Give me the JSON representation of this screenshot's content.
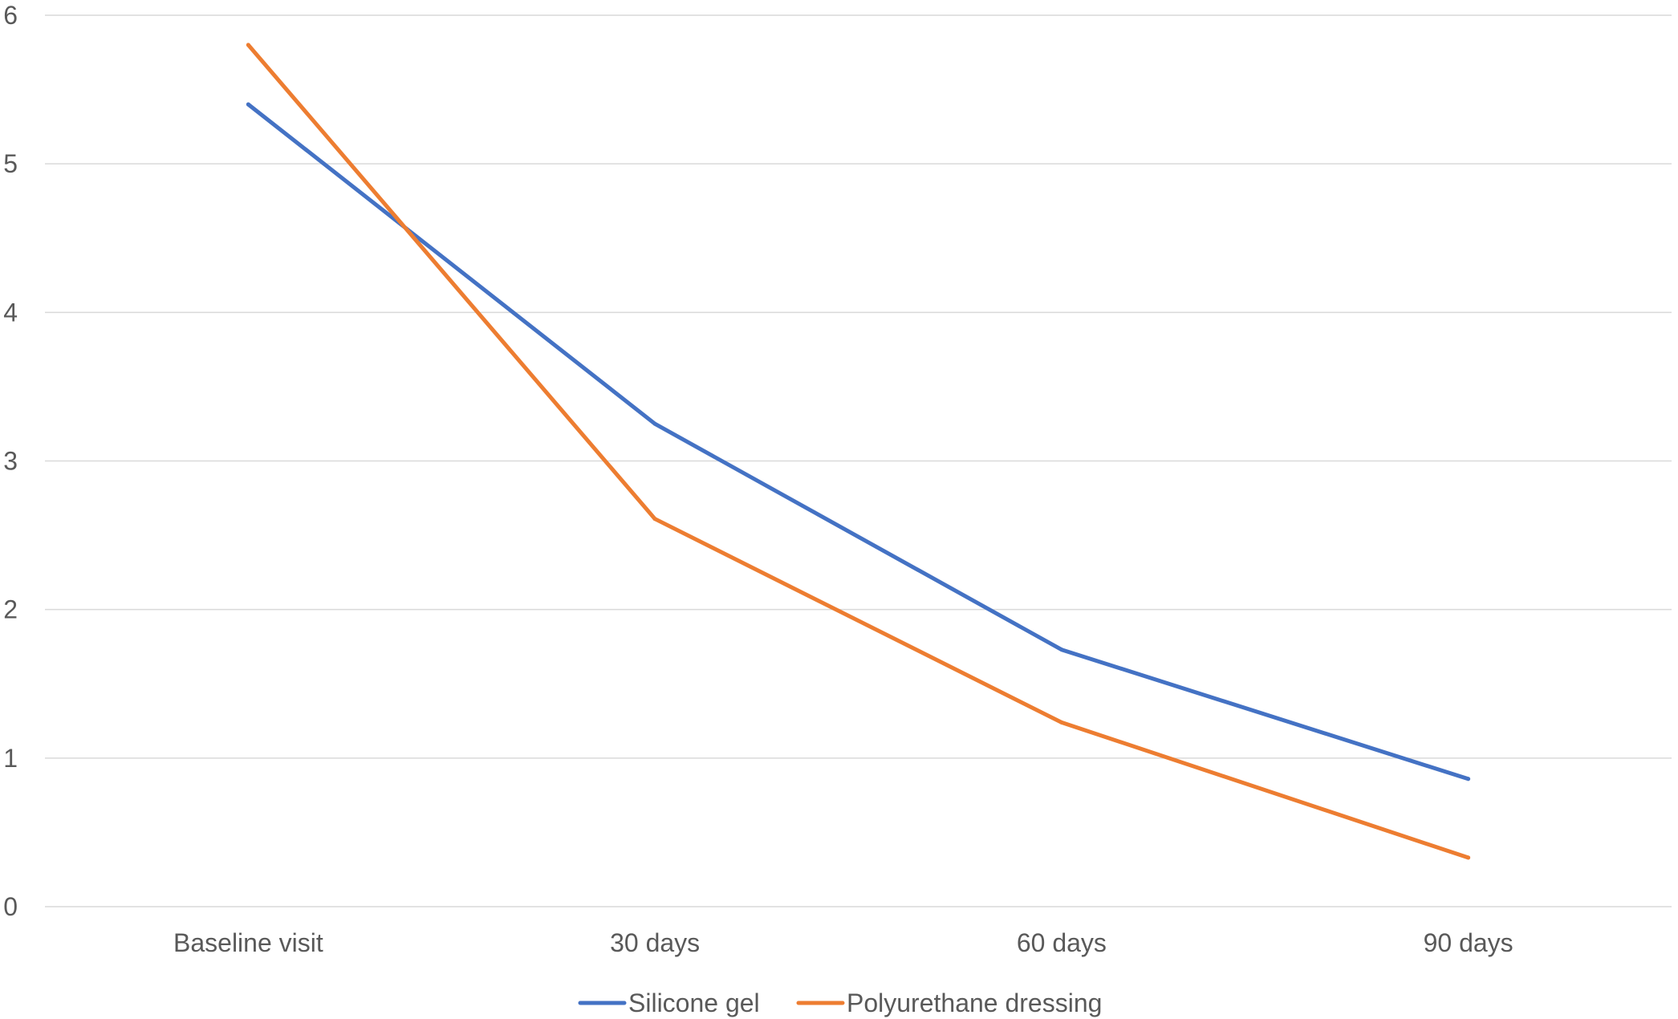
{
  "chart_data": {
    "type": "line",
    "title": "",
    "xlabel": "",
    "ylabel": "",
    "categories": [
      "Baseline visit",
      "30 days",
      "60 days",
      "90 days"
    ],
    "y_ticks": [
      "0",
      "1",
      "2",
      "3",
      "4",
      "5",
      "6"
    ],
    "ylim": [
      0,
      6
    ],
    "grid": true,
    "legend_position": "bottom",
    "series": [
      {
        "name": "Silicone gel",
        "color": "#4472C4",
        "values": [
          5.4,
          3.25,
          1.73,
          0.86
        ]
      },
      {
        "name": "Polyurethane dressing",
        "color": "#ED7D31",
        "values": [
          5.8,
          2.61,
          1.24,
          0.33
        ]
      }
    ]
  }
}
